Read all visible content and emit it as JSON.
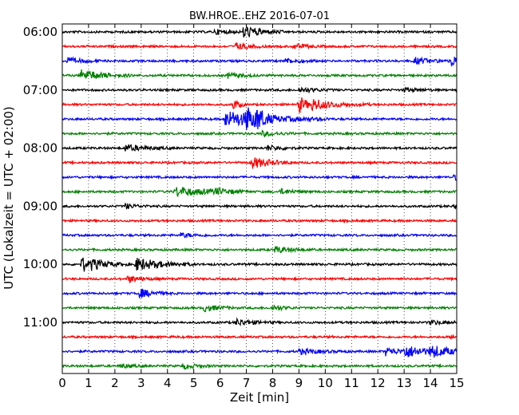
{
  "chart_data": {
    "type": "line",
    "title": "BW.HROE..EHZ 2016-07-01",
    "xlabel": "Zeit  [min]",
    "ylabel": "UTC (Lokalzeit = UTC + 02:00)",
    "xlim": [
      0,
      15
    ],
    "x_ticks": [
      "0",
      "1",
      "2",
      "3",
      "4",
      "5",
      "6",
      "7",
      "8",
      "9",
      "10",
      "11",
      "12",
      "13",
      "14",
      "15"
    ],
    "y_ticks": [
      {
        "label": "06:00",
        "trace": 0
      },
      {
        "label": "07:00",
        "trace": 4
      },
      {
        "label": "08:00",
        "trace": 8
      },
      {
        "label": "09:00",
        "trace": 12
      },
      {
        "label": "10:00",
        "trace": 16
      },
      {
        "label": "11:00",
        "trace": 20
      }
    ],
    "grid": "vertical-dotted",
    "trace_colors": [
      "#000000",
      "#ff0000",
      "#0000ff",
      "#008000"
    ],
    "traces": [
      {
        "start": "06:00",
        "events": [
          {
            "t": 6.9,
            "amp": 8,
            "dur": 0.6
          },
          {
            "t": 5.8,
            "amp": 3,
            "dur": 0.5
          }
        ]
      },
      {
        "start": "06:15",
        "events": [
          {
            "t": 6.6,
            "amp": 4,
            "dur": 0.5
          },
          {
            "t": 8.8,
            "amp": 3,
            "dur": 0.5
          }
        ]
      },
      {
        "start": "06:30",
        "events": [
          {
            "t": 14.8,
            "amp": 7,
            "dur": 0.3
          },
          {
            "t": 0.2,
            "amp": 4,
            "dur": 0.5
          },
          {
            "t": 8.5,
            "amp": 3,
            "dur": 0.5
          },
          {
            "t": 13.4,
            "amp": 4,
            "dur": 0.6
          }
        ]
      },
      {
        "start": "06:45",
        "events": [
          {
            "t": 0.7,
            "amp": 7,
            "dur": 0.8
          },
          {
            "t": 6.3,
            "amp": 3,
            "dur": 0.5
          }
        ]
      },
      {
        "start": "07:00",
        "events": [
          {
            "t": 9.0,
            "amp": 3,
            "dur": 0.6
          },
          {
            "t": 13.0,
            "amp": 2.5,
            "dur": 0.5
          }
        ]
      },
      {
        "start": "07:15",
        "events": [
          {
            "t": 6.5,
            "amp": 7,
            "dur": 0.2
          },
          {
            "t": 9.0,
            "amp": 11,
            "dur": 0.3
          },
          {
            "t": 9.5,
            "amp": 6,
            "dur": 0.9
          }
        ]
      },
      {
        "start": "07:30",
        "events": [
          {
            "t": 6.2,
            "amp": 10,
            "dur": 1.6
          },
          {
            "t": 7.0,
            "amp": 12,
            "dur": 0.3
          },
          {
            "t": 7.4,
            "amp": 9,
            "dur": 0.3
          }
        ]
      },
      {
        "start": "07:45",
        "events": [
          {
            "t": 7.6,
            "amp": 3,
            "dur": 0.5
          }
        ]
      },
      {
        "start": "08:00",
        "events": [
          {
            "t": 2.4,
            "amp": 4,
            "dur": 0.7
          },
          {
            "t": 7.8,
            "amp": 3,
            "dur": 0.5
          }
        ]
      },
      {
        "start": "08:15",
        "events": [
          {
            "t": 7.2,
            "amp": 7,
            "dur": 0.7
          }
        ]
      },
      {
        "start": "08:30",
        "events": [
          {
            "t": 14.9,
            "amp": 3,
            "dur": 0.3
          }
        ]
      },
      {
        "start": "08:45",
        "events": [
          {
            "t": 4.3,
            "amp": 6,
            "dur": 1.1
          },
          {
            "t": 5.8,
            "amp": 3,
            "dur": 0.5
          },
          {
            "t": 8.3,
            "amp": 3,
            "dur": 0.5
          }
        ]
      },
      {
        "start": "09:00",
        "events": [
          {
            "t": 2.4,
            "amp": 3,
            "dur": 0.4
          },
          {
            "t": 14.9,
            "amp": 3,
            "dur": 0.2
          }
        ]
      },
      {
        "start": "09:15",
        "events": []
      },
      {
        "start": "09:30",
        "events": [
          {
            "t": 4.5,
            "amp": 2.5,
            "dur": 0.5
          }
        ]
      },
      {
        "start": "09:45",
        "events": [
          {
            "t": 8.1,
            "amp": 4,
            "dur": 0.6
          }
        ]
      },
      {
        "start": "10:00",
        "events": [
          {
            "t": 0.75,
            "amp": 14,
            "dur": 0.15
          },
          {
            "t": 1.1,
            "amp": 7,
            "dur": 0.6
          },
          {
            "t": 2.8,
            "amp": 8,
            "dur": 0.9
          }
        ]
      },
      {
        "start": "10:15",
        "events": [
          {
            "t": 2.5,
            "amp": 4,
            "dur": 0.5
          }
        ]
      },
      {
        "start": "10:30",
        "events": [
          {
            "t": 2.9,
            "amp": 6,
            "dur": 0.5
          }
        ]
      },
      {
        "start": "10:45",
        "events": [
          {
            "t": 5.4,
            "amp": 4,
            "dur": 0.5
          },
          {
            "t": 8.0,
            "amp": 3,
            "dur": 0.4
          }
        ]
      },
      {
        "start": "11:00",
        "events": [
          {
            "t": 6.6,
            "amp": 4,
            "dur": 0.6
          },
          {
            "t": 14.0,
            "amp": 2.5,
            "dur": 0.5
          }
        ]
      },
      {
        "start": "11:15",
        "events": [
          {
            "t": 14.8,
            "amp": 2.5,
            "dur": 0.3
          }
        ]
      },
      {
        "start": "11:30",
        "events": [
          {
            "t": 12.3,
            "amp": 5,
            "dur": 0.5
          },
          {
            "t": 13.0,
            "amp": 7,
            "dur": 0.9
          },
          {
            "t": 14.0,
            "amp": 6,
            "dur": 0.7
          },
          {
            "t": 9.0,
            "amp": 3,
            "dur": 0.8
          }
        ]
      },
      {
        "start": "11:45",
        "events": [
          {
            "t": 4.6,
            "amp": 3,
            "dur": 0.5
          },
          {
            "t": 2.2,
            "amp": 2.5,
            "dur": 0.4
          }
        ]
      }
    ]
  }
}
